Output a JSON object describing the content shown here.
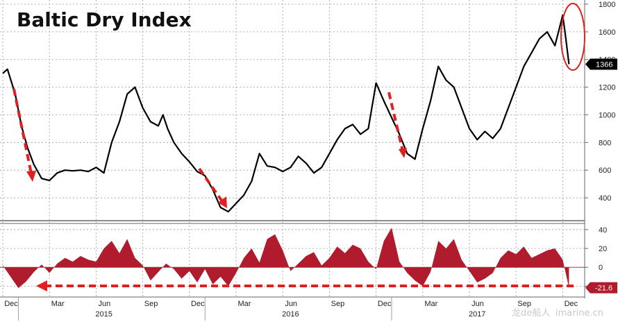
{
  "chart_data": [
    {
      "type": "line",
      "title": "Baltic Dry Index",
      "ylim": [
        300,
        1800
      ],
      "yticks": [
        400,
        600,
        800,
        1000,
        1200,
        1400,
        1600,
        1800
      ],
      "last_value": 1366,
      "line_color": "#000000",
      "series": [
        {
          "x": [
            0.0,
            0.3,
            0.8,
            1.2,
            1.6,
            2.0,
            2.5,
            3.0,
            3.5,
            4.0,
            4.5,
            5.0,
            5.5,
            6.0,
            6.5,
            7.0,
            7.5,
            8.0,
            8.5,
            9.0,
            9.5,
            10.0,
            10.3,
            10.6,
            11.0,
            11.5,
            12.0,
            12.5,
            13.0,
            13.5,
            14.0,
            14.5,
            15.0,
            15.5,
            16.0,
            16.5,
            17.0,
            17.5,
            18.0,
            18.5,
            19.0,
            19.5,
            20.0,
            20.5,
            21.0,
            21.5,
            22.0,
            22.5,
            23.0,
            23.5,
            24.0,
            24.5,
            25.0,
            25.5,
            26.0,
            26.5,
            27.0,
            27.5,
            28.0,
            28.5,
            29.0,
            29.5,
            30.0,
            30.5,
            31.0,
            31.5,
            32.0,
            32.5,
            33.0,
            33.5,
            34.0,
            34.5,
            35.0,
            35.5,
            36.0,
            36.2,
            36.4
          ],
          "y": [
            1300,
            1330,
            1150,
            920,
            760,
            640,
            540,
            525,
            580,
            600,
            595,
            600,
            590,
            620,
            580,
            800,
            950,
            1150,
            1200,
            1050,
            950,
            920,
            1000,
            900,
            800,
            720,
            660,
            590,
            560,
            460,
            330,
            300,
            360,
            420,
            520,
            720,
            630,
            620,
            590,
            620,
            700,
            650,
            580,
            620,
            720,
            820,
            900,
            930,
            860,
            900,
            1230,
            1100,
            980,
            860,
            720,
            680,
            900,
            1100,
            1350,
            1250,
            1200,
            1050,
            900,
            820,
            880,
            830,
            900,
            1050,
            1200,
            1350,
            1450,
            1550,
            1600,
            1500,
            1720,
            1550,
            1366
          ]
        }
      ]
    },
    {
      "type": "area",
      "ylim": [
        -30,
        45
      ],
      "yticks": [
        40,
        20,
        0,
        -20
      ],
      "last_value": -21.6,
      "fill_color": "#b01c2e",
      "series": [
        {
          "x": [
            0.0,
            0.5,
            1.0,
            1.5,
            2.0,
            2.5,
            3.0,
            3.5,
            4.0,
            4.5,
            5.0,
            5.5,
            6.0,
            6.5,
            7.0,
            7.5,
            8.0,
            8.5,
            9.0,
            9.5,
            10.0,
            10.5,
            11.0,
            11.5,
            12.0,
            12.5,
            13.0,
            13.5,
            14.0,
            14.5,
            15.0,
            15.5,
            16.0,
            16.5,
            17.0,
            17.5,
            18.0,
            18.5,
            19.0,
            19.5,
            20.0,
            20.5,
            21.0,
            21.5,
            22.0,
            22.5,
            23.0,
            23.5,
            24.0,
            24.5,
            25.0,
            25.5,
            26.0,
            26.5,
            27.0,
            27.5,
            28.0,
            28.5,
            29.0,
            29.5,
            30.0,
            30.5,
            31.0,
            31.5,
            32.0,
            32.5,
            33.0,
            33.5,
            34.0,
            34.5,
            35.0,
            35.5,
            36.0,
            36.4
          ],
          "y": [
            2,
            -10,
            -22,
            -15,
            -5,
            3,
            -6,
            4,
            10,
            6,
            12,
            8,
            6,
            20,
            28,
            15,
            30,
            10,
            2,
            -14,
            -5,
            4,
            -2,
            -12,
            -4,
            -16,
            -2,
            -18,
            -10,
            -20,
            -6,
            10,
            20,
            5,
            30,
            35,
            18,
            -4,
            4,
            12,
            16,
            2,
            10,
            22,
            15,
            24,
            20,
            6,
            -2,
            28,
            42,
            6,
            -6,
            -14,
            -20,
            -5,
            28,
            20,
            30,
            8,
            -4,
            -16,
            -12,
            -6,
            10,
            18,
            14,
            22,
            10,
            14,
            18,
            20,
            8,
            -21.6
          ]
        }
      ]
    }
  ],
  "x_axis": {
    "months": [
      "Dec",
      "Mar",
      "Jun",
      "Sep",
      "Dec",
      "Mar",
      "Jun",
      "Sep",
      "Dec",
      "Mar",
      "Jun",
      "Sep",
      "Dec"
    ],
    "years": [
      "2015",
      "2016",
      "2017"
    ]
  },
  "watermark": {
    "cn": "龙de船人",
    "url": "imarine.cn"
  }
}
